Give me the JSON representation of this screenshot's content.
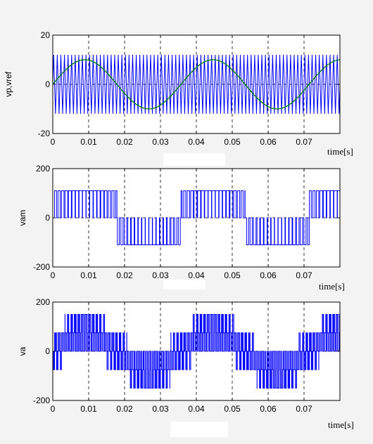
{
  "chart_data": [
    {
      "type": "line",
      "ylabel": "vp,vref",
      "xlabel": "time[s]",
      "xlim": [
        0,
        0.08
      ],
      "ylim": [
        -20,
        20
      ],
      "xticks": [
        0,
        0.01,
        0.02,
        0.03,
        0.04,
        0.05,
        0.06,
        0.07
      ],
      "xtick_labels": [
        "0",
        "0.01",
        "0.02",
        "0.03",
        "0.04",
        "0.05",
        "0.06",
        "0.07"
      ],
      "yticks": [
        -20,
        0,
        20
      ],
      "ytick_labels": [
        "-20",
        "0",
        "20"
      ],
      "grid": true,
      "series": [
        {
          "kind": "triangle_carrier",
          "color": "#0000ff",
          "amplitude": 12,
          "frequency_hz": 1000,
          "x": [
            0,
            0.0005,
            0.001,
            0.0015,
            0.002,
            0.0025,
            0.003
          ],
          "y": [
            0,
            12,
            0,
            -12,
            0,
            12,
            0
          ]
        },
        {
          "kind": "sine_reference",
          "color": "#008000",
          "amplitude": 10,
          "frequency_hz": 28,
          "x": [
            0,
            0.009,
            0.018,
            0.027,
            0.036,
            0.045,
            0.054,
            0.063,
            0.072,
            0.08
          ],
          "y": [
            0,
            10,
            0,
            -10,
            0,
            10,
            0,
            -10,
            0,
            10
          ]
        }
      ]
    },
    {
      "type": "line",
      "ylabel": "vam",
      "xlabel": "time[s]",
      "xlim": [
        0,
        0.08
      ],
      "ylim": [
        -200,
        200
      ],
      "xticks": [
        0,
        0.01,
        0.02,
        0.03,
        0.04,
        0.05,
        0.06,
        0.07
      ],
      "xtick_labels": [
        "0",
        "0.01",
        "0.02",
        "0.03",
        "0.04",
        "0.05",
        "0.06",
        "0.07"
      ],
      "yticks": [
        -200,
        0,
        200
      ],
      "ytick_labels": [
        "-200",
        "0",
        "200"
      ],
      "grid": true,
      "series": [
        {
          "kind": "pwm_phase_voltage",
          "color": "#0000ff",
          "levels": [
            -110,
            0,
            110
          ],
          "x": [
            0,
            0.004,
            0.008,
            0.012,
            0.0175,
            0.018,
            0.022,
            0.026,
            0.0355,
            0.036,
            0.04,
            0.044,
            0.0535,
            0.054,
            0.058,
            0.062,
            0.0715,
            0.072,
            0.076,
            0.08
          ],
          "y": [
            0,
            110,
            110,
            110,
            0,
            0,
            -110,
            -110,
            0,
            0,
            110,
            110,
            0,
            0,
            -110,
            -110,
            0,
            0,
            110,
            110
          ]
        }
      ]
    },
    {
      "type": "line",
      "ylabel": "va",
      "xlabel": "time[s]",
      "xlim": [
        0,
        0.08
      ],
      "ylim": [
        -200,
        200
      ],
      "xticks": [
        0,
        0.01,
        0.02,
        0.03,
        0.04,
        0.05,
        0.06,
        0.07
      ],
      "xtick_labels": [
        "0",
        "0.01",
        "0.02",
        "0.03",
        "0.04",
        "0.05",
        "0.06",
        "0.07"
      ],
      "yticks": [
        -200,
        0,
        200
      ],
      "ytick_labels": [
        "-200",
        "0",
        "200"
      ],
      "grid": true,
      "series": [
        {
          "kind": "pwm_line_to_neutral_voltage",
          "color": "#0000ff",
          "levels": [
            -150,
            -110,
            -75,
            -40,
            0,
            40,
            75,
            110,
            150
          ],
          "x": [
            0,
            0.004,
            0.0085,
            0.013,
            0.018,
            0.022,
            0.0265,
            0.031,
            0.036,
            0.04,
            0.0445,
            0.049,
            0.054,
            0.058,
            0.0625,
            0.067,
            0.072,
            0.076,
            0.08
          ],
          "y": [
            0,
            75,
            150,
            75,
            0,
            -75,
            -150,
            -75,
            0,
            75,
            150,
            75,
            0,
            -75,
            -150,
            -75,
            0,
            75,
            150
          ]
        }
      ]
    }
  ]
}
